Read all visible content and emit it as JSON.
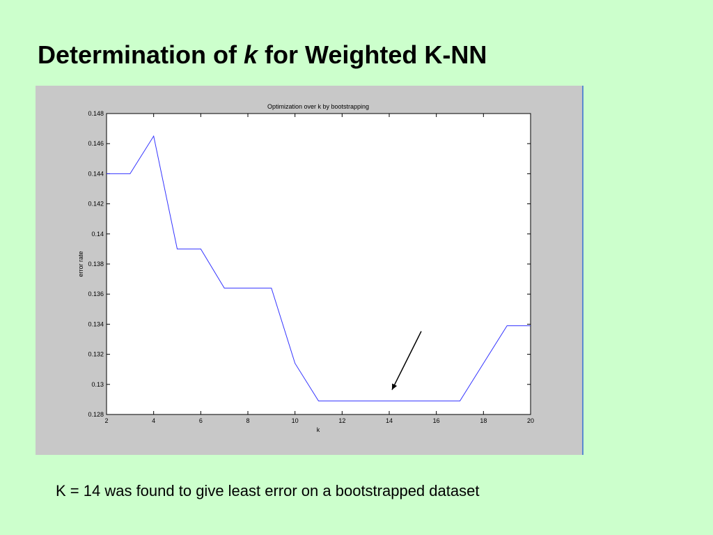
{
  "slide": {
    "title_prefix": "Determination of ",
    "title_var": "k",
    "title_suffix": " for Weighted K-NN",
    "caption": "K = 14 was found to give least error on a bootstrapped dataset"
  },
  "colors": {
    "background": "#ccffcc",
    "figure_background": "#c8c8c8",
    "plot_area": "#ffffff",
    "line": "#3333ff"
  },
  "chart_data": {
    "type": "line",
    "title": "Optimization over k by bootstrapping",
    "xlabel": "k",
    "ylabel": "error rate",
    "xlim": [
      2,
      20
    ],
    "ylim": [
      0.128,
      0.148
    ],
    "xticks": [
      2,
      4,
      6,
      8,
      10,
      12,
      14,
      16,
      18,
      20
    ],
    "yticks": [
      0.128,
      0.13,
      0.132,
      0.134,
      0.136,
      0.138,
      0.14,
      0.142,
      0.144,
      0.146,
      0.148
    ],
    "grid": false,
    "x": [
      2,
      3,
      4,
      5,
      6,
      7,
      8,
      9,
      10,
      11,
      12,
      13,
      14,
      15,
      16,
      17,
      18,
      19,
      20
    ],
    "y": [
      0.144,
      0.144,
      0.1465,
      0.139,
      0.139,
      0.1364,
      0.1364,
      0.1364,
      0.1314,
      0.1289,
      0.1289,
      0.1289,
      0.1289,
      0.1289,
      0.1289,
      0.1289,
      0.1314,
      0.1339,
      0.1339
    ],
    "annotation": {
      "type": "arrow",
      "target_x": 14,
      "target_y": 0.1289
    }
  }
}
